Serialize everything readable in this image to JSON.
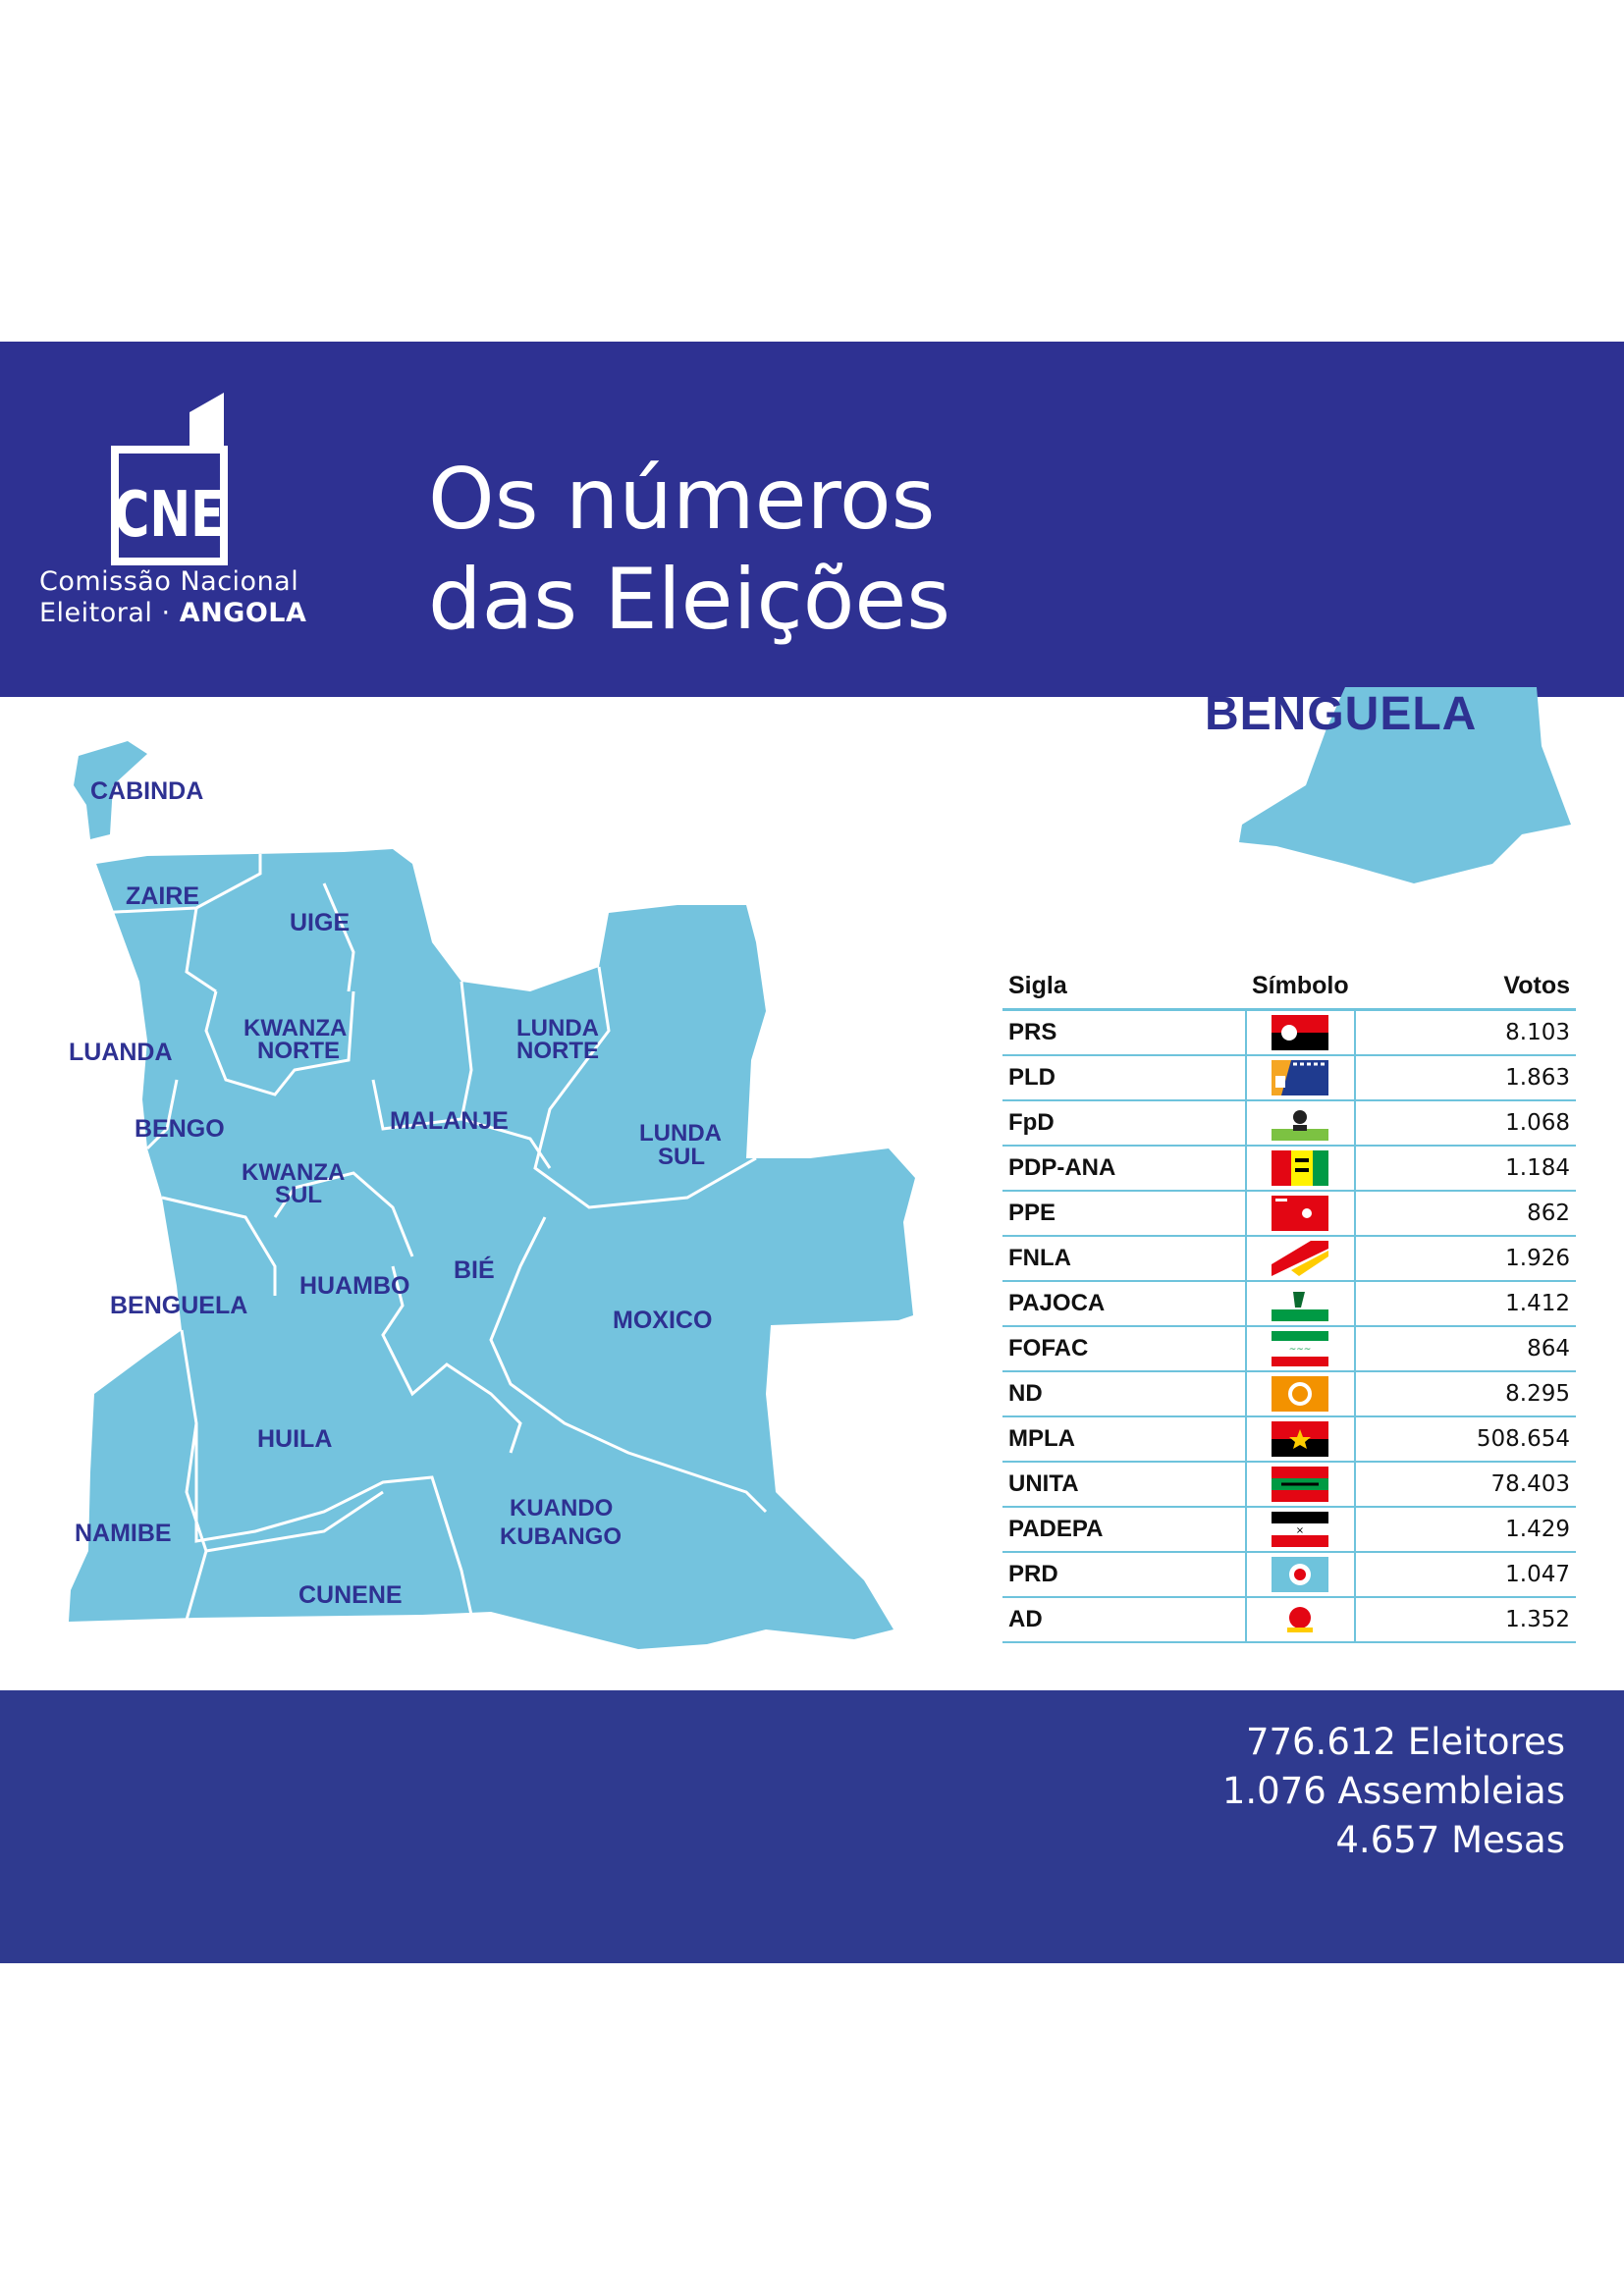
{
  "header": {
    "logo_text": "CNE",
    "org_line1": "Comissão Nacional",
    "org_line2_a": "Eleitoral",
    "org_line2_b": "ANGOLA",
    "title_line1": "Os números",
    "title_line2": "das Eleições"
  },
  "region": {
    "name": "BENGUELA"
  },
  "map": {
    "provinces": [
      "CABINDA",
      "ZAIRE",
      "UIGE",
      "LUANDA",
      "KWANZA NORTE",
      "LUNDA NORTE",
      "BENGO",
      "MALANJE",
      "LUNDA SUL",
      "KWANZA SUL",
      "BENGUELA",
      "HUAMBO",
      "BIÉ",
      "MOXICO",
      "HUILA",
      "NAMIBE",
      "KUANDO KUBANGO",
      "CUNENE"
    ]
  },
  "table": {
    "headers": {
      "sigla": "Sigla",
      "simbolo": "Símbolo",
      "votos": "Votos"
    },
    "rows": [
      {
        "sigla": "PRS",
        "votos": "8.103",
        "flag": "prs"
      },
      {
        "sigla": "PLD",
        "votos": "1.863",
        "flag": "pld"
      },
      {
        "sigla": "FpD",
        "votos": "1.068",
        "flag": "fpd"
      },
      {
        "sigla": "PDP-ANA",
        "votos": "1.184",
        "flag": "pdp"
      },
      {
        "sigla": "PPE",
        "votos": "862",
        "flag": "ppe"
      },
      {
        "sigla": "FNLA",
        "votos": "1.926",
        "flag": "fnla"
      },
      {
        "sigla": "PAJOCA",
        "votos": "1.412",
        "flag": "pajoca"
      },
      {
        "sigla": "FOFAC",
        "votos": "864",
        "flag": "fofac"
      },
      {
        "sigla": "ND",
        "votos": "8.295",
        "flag": "nd"
      },
      {
        "sigla": "MPLA",
        "votos": "508.654",
        "flag": "mpla"
      },
      {
        "sigla": "UNITA",
        "votos": "78.403",
        "flag": "unita"
      },
      {
        "sigla": "PADEPA",
        "votos": "1.429",
        "flag": "padepa"
      },
      {
        "sigla": "PRD",
        "votos": "1.047",
        "flag": "prd"
      },
      {
        "sigla": "AD",
        "votos": "1.352",
        "flag": "ad"
      }
    ]
  },
  "footer": {
    "eleitores": "776.612 Eleitores",
    "assembleias": "1.076 Assembleias",
    "mesas": "4.657 Mesas"
  },
  "colors": {
    "band": "#2e3192",
    "map_fill": "#74c3de",
    "rule": "#6ec3dc"
  }
}
